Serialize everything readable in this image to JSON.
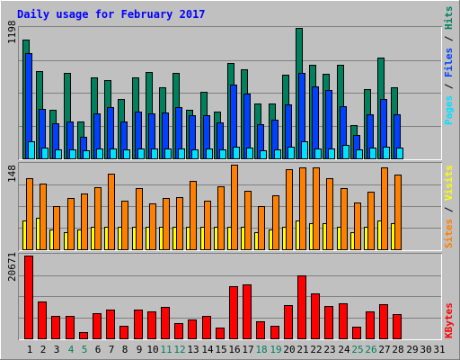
{
  "title": "Daily usage for February 2017",
  "colors": {
    "background": "#c0c0c0",
    "title": "#0000ff",
    "hits": "#00805c",
    "files": "#0040ff",
    "pages": "#00e0ff",
    "visits": "#ffff00",
    "sites": "#ff8000",
    "kbytes": "#ff0000",
    "day_weekday": "#000000",
    "day_weekend": "#00805c"
  },
  "chart_data": [
    {
      "type": "bar",
      "panel": "hits-files-pages",
      "categories": [
        "1",
        "2",
        "3",
        "4",
        "5",
        "6",
        "7",
        "8",
        "9",
        "10",
        "11",
        "12",
        "13",
        "14",
        "15",
        "16",
        "17",
        "18",
        "19",
        "20",
        "21",
        "22",
        "23",
        "24",
        "25",
        "26",
        "27",
        "28",
        "29",
        "30",
        "31"
      ],
      "ymax_label": "1198",
      "ylim": [
        0,
        1198
      ],
      "legend": {
        "hits": "Hits",
        "files": "Files",
        "pages": "Pages",
        "sep": " / "
      },
      "series": [
        {
          "name": "Hits",
          "values": [
            1080,
            800,
            440,
            780,
            340,
            740,
            710,
            540,
            740,
            790,
            650,
            780,
            440,
            610,
            430,
            870,
            810,
            500,
            500,
            760,
            1190,
            850,
            770,
            850,
            300,
            630,
            920,
            650,
            null,
            null,
            null
          ]
        },
        {
          "name": "Files",
          "values": [
            960,
            450,
            320,
            340,
            200,
            410,
            470,
            340,
            430,
            410,
            420,
            470,
            390,
            390,
            330,
            670,
            590,
            310,
            350,
            490,
            780,
            660,
            620,
            480,
            210,
            400,
            540,
            400,
            null,
            null,
            null
          ]
        },
        {
          "name": "Pages",
          "values": [
            160,
            100,
            80,
            80,
            70,
            90,
            90,
            80,
            90,
            90,
            90,
            90,
            80,
            90,
            80,
            110,
            100,
            70,
            80,
            110,
            160,
            90,
            90,
            120,
            80,
            100,
            110,
            100,
            null,
            null,
            null
          ]
        }
      ]
    },
    {
      "type": "bar",
      "panel": "visits-sites",
      "categories": [
        "1",
        "2",
        "3",
        "4",
        "5",
        "6",
        "7",
        "8",
        "9",
        "10",
        "11",
        "12",
        "13",
        "14",
        "15",
        "16",
        "17",
        "18",
        "19",
        "20",
        "21",
        "22",
        "23",
        "24",
        "25",
        "26",
        "27",
        "28",
        "29",
        "30",
        "31"
      ],
      "ymax_label": "148",
      "ylim": [
        0,
        148
      ],
      "legend": {
        "visits": "Visits",
        "sites": "Sites",
        "sep": " / "
      },
      "series": [
        {
          "name": "Visits",
          "values": [
            50,
            55,
            35,
            30,
            35,
            40,
            40,
            40,
            40,
            40,
            40,
            40,
            40,
            40,
            40,
            40,
            40,
            30,
            35,
            40,
            50,
            45,
            45,
            40,
            30,
            40,
            50,
            45,
            null,
            null,
            null
          ]
        },
        {
          "name": "Sites",
          "values": [
            125,
            115,
            75,
            90,
            97,
            108,
            133,
            85,
            107,
            80,
            90,
            92,
            120,
            85,
            110,
            148,
            102,
            75,
            95,
            140,
            143,
            143,
            125,
            107,
            82,
            101,
            143,
            130,
            null,
            null,
            null
          ]
        }
      ]
    },
    {
      "type": "bar",
      "panel": "kbytes",
      "categories": [
        "1",
        "2",
        "3",
        "4",
        "5",
        "6",
        "7",
        "8",
        "9",
        "10",
        "11",
        "12",
        "13",
        "14",
        "15",
        "16",
        "17",
        "18",
        "19",
        "20",
        "21",
        "22",
        "23",
        "24",
        "25",
        "26",
        "27",
        "28",
        "29",
        "30",
        "31"
      ],
      "ymax_label": "20671",
      "ylim": [
        0,
        20671
      ],
      "legend": {
        "kbytes": "KBytes"
      },
      "series": [
        {
          "name": "KBytes",
          "values": [
            20671,
            9300,
            5700,
            5700,
            1600,
            6200,
            7200,
            3200,
            7200,
            6800,
            7800,
            3800,
            4800,
            5600,
            2800,
            13000,
            13400,
            4200,
            3200,
            8300,
            15800,
            11200,
            8000,
            8800,
            3000,
            6700,
            8500,
            6000,
            null,
            null,
            null
          ]
        }
      ]
    }
  ]
}
